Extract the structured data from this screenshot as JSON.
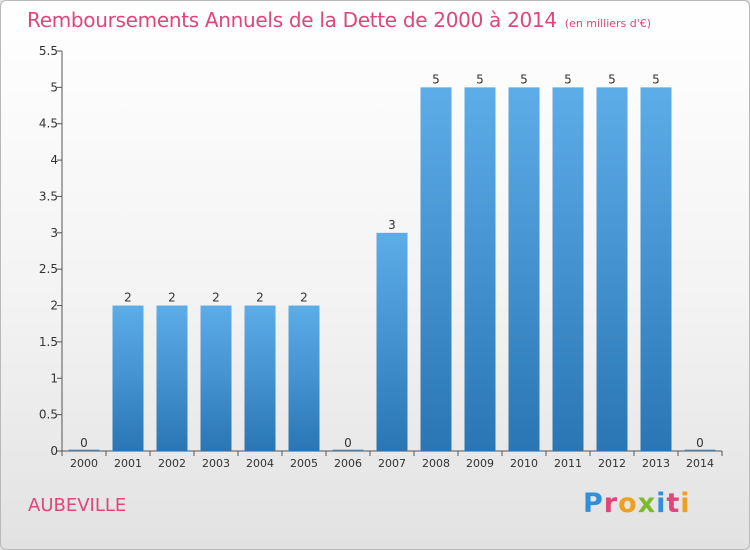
{
  "header": {
    "title": "Remboursements Annuels de la Dette de 2000 à 2014",
    "unit": "(en milliers d'€)"
  },
  "footer": {
    "place": "AUBEVILLE",
    "logo_letters": [
      "P",
      "r",
      "o",
      "x",
      "i",
      "t",
      "i"
    ],
    "logo_colors": [
      "#2f8fd8",
      "#e0457b",
      "#f0a020",
      "#7cbb2a",
      "#2f8fd8",
      "#e0457b",
      "#f0a020"
    ]
  },
  "colors": {
    "title": "#e0457b",
    "bar_top": "#5dade9",
    "bar_bottom": "#2a76b4",
    "axis": "#555555",
    "text": "#333333"
  },
  "chart_data": {
    "type": "bar",
    "title": "Remboursements Annuels de la Dette de 2000 à 2014",
    "xlabel": "",
    "ylabel": "(en milliers d'€)",
    "categories": [
      "2000",
      "2001",
      "2002",
      "2003",
      "2004",
      "2005",
      "2006",
      "2007",
      "2008",
      "2009",
      "2010",
      "2011",
      "2012",
      "2013",
      "2014"
    ],
    "values": [
      0,
      2,
      2,
      2,
      2,
      2,
      0,
      3,
      5,
      5,
      5,
      5,
      5,
      5,
      0
    ],
    "value_labels": [
      "0",
      "2",
      "2",
      "2",
      "2",
      "2",
      "0",
      "3",
      "5",
      "5",
      "5",
      "5",
      "5",
      "5",
      "0"
    ],
    "ylim": [
      0,
      5.5
    ],
    "yticks": [
      0,
      0.5,
      1,
      1.5,
      2,
      2.5,
      3,
      3.5,
      4,
      4.5,
      5,
      5.5
    ],
    "ytick_labels": [
      "0",
      "0.5",
      "1",
      "1.5",
      "2",
      "2.5",
      "3",
      "3.5",
      "4",
      "4.5",
      "5",
      "5.5"
    ],
    "grid": false,
    "legend": "none"
  }
}
